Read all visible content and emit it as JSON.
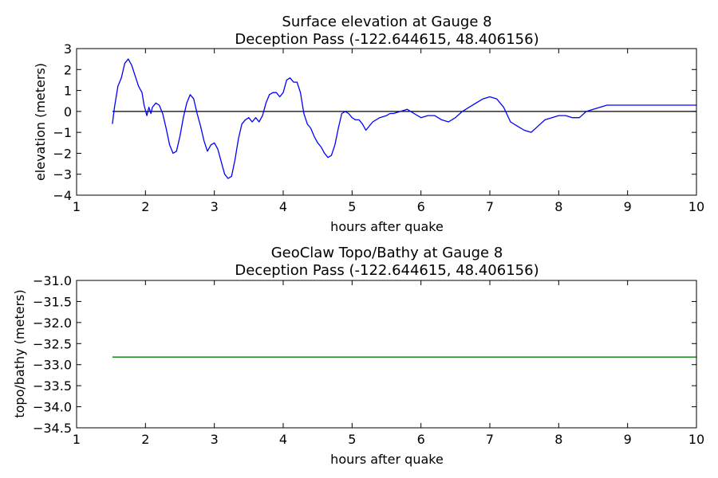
{
  "chart_data": [
    {
      "type": "line",
      "title": "Surface elevation at Gauge 8",
      "subtitle": "Deception Pass  (-122.644615, 48.406156)",
      "xlabel": "hours after quake",
      "ylabel": "elevation (meters)",
      "xlim": [
        1,
        10
      ],
      "ylim": [
        -4,
        3
      ],
      "xticks": [
        "1",
        "2",
        "3",
        "4",
        "5",
        "6",
        "7",
        "8",
        "9",
        "10"
      ],
      "yticks": [
        "−4",
        "−3",
        "−2",
        "−1",
        "0",
        "1",
        "2",
        "3"
      ],
      "grid": false,
      "reference_line": {
        "y": 0,
        "color": "#000000"
      },
      "series": [
        {
          "color": "#0000ff",
          "x": [
            1.52,
            1.55,
            1.6,
            1.65,
            1.7,
            1.75,
            1.8,
            1.85,
            1.9,
            1.95,
            1.98,
            2.02,
            2.05,
            2.08,
            2.1,
            2.15,
            2.2,
            2.25,
            2.3,
            2.35,
            2.4,
            2.45,
            2.5,
            2.55,
            2.6,
            2.65,
            2.7,
            2.75,
            2.8,
            2.85,
            2.9,
            2.95,
            3.0,
            3.05,
            3.1,
            3.15,
            3.2,
            3.25,
            3.3,
            3.35,
            3.4,
            3.45,
            3.5,
            3.55,
            3.6,
            3.65,
            3.7,
            3.75,
            3.8,
            3.85,
            3.9,
            3.95,
            4.0,
            4.05,
            4.1,
            4.15,
            4.2,
            4.25,
            4.3,
            4.35,
            4.4,
            4.45,
            4.5,
            4.55,
            4.6,
            4.65,
            4.7,
            4.75,
            4.8,
            4.85,
            4.9,
            4.95,
            5.0,
            5.05,
            5.1,
            5.15,
            5.2,
            5.3,
            5.4,
            5.5,
            5.55,
            5.6,
            5.7,
            5.8,
            5.9,
            6.0,
            6.1,
            6.2,
            6.3,
            6.4,
            6.5,
            6.6,
            6.7,
            6.8,
            6.9,
            7.0,
            7.1,
            7.2,
            7.3,
            7.4,
            7.5,
            7.6,
            7.7,
            7.8,
            7.9,
            8.0,
            8.1,
            8.2,
            8.3,
            8.4,
            8.5,
            8.6,
            8.7,
            8.8,
            8.9,
            9.0,
            9.1,
            9.2,
            9.3,
            9.4,
            9.5,
            9.6,
            9.7,
            9.8,
            9.9,
            10.0
          ],
          "y": [
            -0.6,
            0.2,
            1.2,
            1.6,
            2.3,
            2.5,
            2.2,
            1.7,
            1.2,
            0.9,
            0.3,
            -0.2,
            0.2,
            -0.1,
            0.2,
            0.4,
            0.3,
            -0.1,
            -0.8,
            -1.6,
            -2.0,
            -1.9,
            -1.2,
            -0.3,
            0.4,
            0.8,
            0.6,
            -0.1,
            -0.7,
            -1.4,
            -1.9,
            -1.6,
            -1.5,
            -1.8,
            -2.4,
            -3.0,
            -3.2,
            -3.1,
            -2.3,
            -1.3,
            -0.6,
            -0.4,
            -0.3,
            -0.5,
            -0.3,
            -0.5,
            -0.2,
            0.4,
            0.8,
            0.9,
            0.9,
            0.7,
            0.9,
            1.5,
            1.6,
            1.4,
            1.4,
            0.9,
            -0.1,
            -0.6,
            -0.8,
            -1.2,
            -1.5,
            -1.7,
            -2.0,
            -2.2,
            -2.1,
            -1.6,
            -0.8,
            -0.1,
            0.0,
            -0.1,
            -0.3,
            -0.4,
            -0.4,
            -0.6,
            -0.9,
            -0.5,
            -0.3,
            -0.2,
            -0.1,
            -0.1,
            0.0,
            0.1,
            -0.1,
            -0.3,
            -0.2,
            -0.2,
            -0.4,
            -0.5,
            -0.3,
            0.0,
            0.2,
            0.4,
            0.6,
            0.7,
            0.6,
            0.2,
            -0.5,
            -0.7,
            -0.9,
            -1.0,
            -0.7,
            -0.4,
            -0.3,
            -0.2,
            -0.2,
            -0.3,
            -0.3,
            0.0,
            0.1,
            0.2,
            0.3,
            0.3,
            0.3,
            0.3,
            0.3,
            0.3,
            0.3,
            0.3,
            0.3,
            0.3,
            0.3,
            0.3,
            0.3,
            0.3
          ]
        }
      ]
    },
    {
      "type": "line",
      "title": "GeoClaw Topo/Bathy at Gauge 8",
      "subtitle": "Deception Pass  (-122.644615, 48.406156)",
      "xlabel": "hours after quake",
      "ylabel": "topo/bathy (meters)",
      "xlim": [
        1,
        10
      ],
      "ylim": [
        -34.5,
        -31.0
      ],
      "xticks": [
        "1",
        "2",
        "3",
        "4",
        "5",
        "6",
        "7",
        "8",
        "9",
        "10"
      ],
      "yticks": [
        "−34.5",
        "−34.0",
        "−33.5",
        "−33.0",
        "−32.5",
        "−32.0",
        "−31.5",
        "−31.0"
      ],
      "grid": false,
      "series": [
        {
          "color": "#008000",
          "x": [
            1.52,
            10.0
          ],
          "y": [
            -32.82,
            -32.82
          ]
        }
      ]
    }
  ]
}
